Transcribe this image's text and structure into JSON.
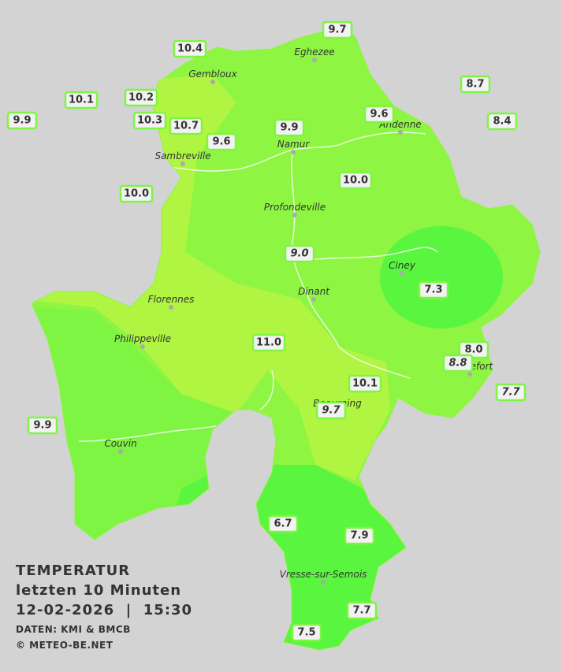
{
  "title": {
    "line1": "TEMPERATUR",
    "line2": "letzten 10 Minuten",
    "line3": "12-02-2026  |  15:30",
    "source": "DATEN: KMI & BMCB",
    "copyright": "© METEO-BE.NET"
  },
  "cities": [
    "Eghezee",
    "Gembloux",
    "Andenne",
    "Namur",
    "Sambreville",
    "Profondeville",
    "Ciney",
    "Dinant",
    "Florennes",
    "Philippeville",
    "Beauraing",
    "Rochefort",
    "Couvin",
    "Vresse-sur-Semois"
  ],
  "stations": [
    {
      "label": "9.7"
    },
    {
      "label": "10.4"
    },
    {
      "label": "8.7"
    },
    {
      "label": "10.1"
    },
    {
      "label": "10.2"
    },
    {
      "label": "9.9"
    },
    {
      "label": "10.3"
    },
    {
      "label": "10.7"
    },
    {
      "label": "9.9"
    },
    {
      "label": "9.6"
    },
    {
      "label": "8.4"
    },
    {
      "label": "9.6"
    },
    {
      "label": "10.0"
    },
    {
      "label": "10.0"
    },
    {
      "label": "9.0",
      "italic": true
    },
    {
      "label": "7.3"
    },
    {
      "label": "11.0"
    },
    {
      "label": "8.0"
    },
    {
      "label": "8.8",
      "italic": true
    },
    {
      "label": "10.1"
    },
    {
      "label": "7.7",
      "italic": true
    },
    {
      "label": "9.7",
      "italic": true
    },
    {
      "label": "9.9"
    },
    {
      "label": "6.7"
    },
    {
      "label": "7.9"
    },
    {
      "label": "7.7"
    },
    {
      "label": "7.5"
    }
  ]
}
